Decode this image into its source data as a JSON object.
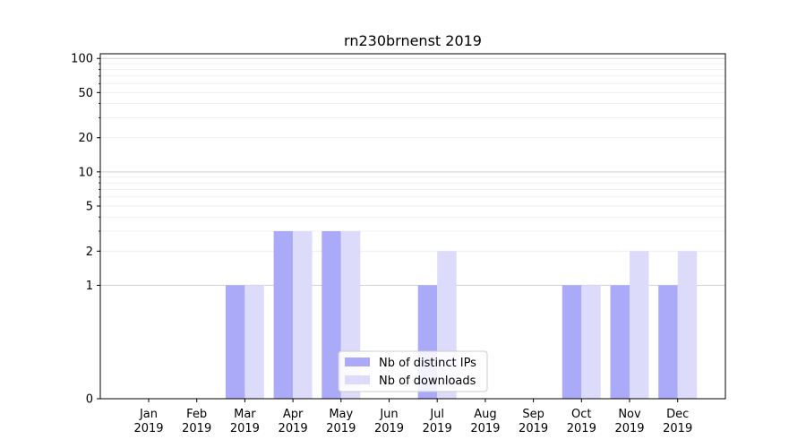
{
  "chart_data": {
    "type": "bar",
    "title": "rn230brnenst 2019",
    "xlabel": "",
    "ylabel": "",
    "categories": [
      {
        "month": "Jan",
        "year": "2019"
      },
      {
        "month": "Feb",
        "year": "2019"
      },
      {
        "month": "Mar",
        "year": "2019"
      },
      {
        "month": "Apr",
        "year": "2019"
      },
      {
        "month": "May",
        "year": "2019"
      },
      {
        "month": "Jun",
        "year": "2019"
      },
      {
        "month": "Jul",
        "year": "2019"
      },
      {
        "month": "Aug",
        "year": "2019"
      },
      {
        "month": "Sep",
        "year": "2019"
      },
      {
        "month": "Oct",
        "year": "2019"
      },
      {
        "month": "Nov",
        "year": "2019"
      },
      {
        "month": "Dec",
        "year": "2019"
      }
    ],
    "series": [
      {
        "name": "Nb of distinct IPs",
        "color": "#aaaaf8",
        "values": [
          0,
          0,
          1,
          3,
          3,
          0,
          1,
          0,
          0,
          1,
          1,
          1
        ]
      },
      {
        "name": "Nb of downloads",
        "color": "#dcdcfa",
        "values": [
          0,
          0,
          1,
          3,
          3,
          0,
          2,
          0,
          0,
          1,
          2,
          2
        ]
      }
    ],
    "y_scale": "symlog",
    "ylim": [
      0,
      110
    ],
    "yticks": [
      0,
      1,
      2,
      5,
      10,
      20,
      50,
      100
    ],
    "grid": true,
    "legend_position": "lower center"
  }
}
